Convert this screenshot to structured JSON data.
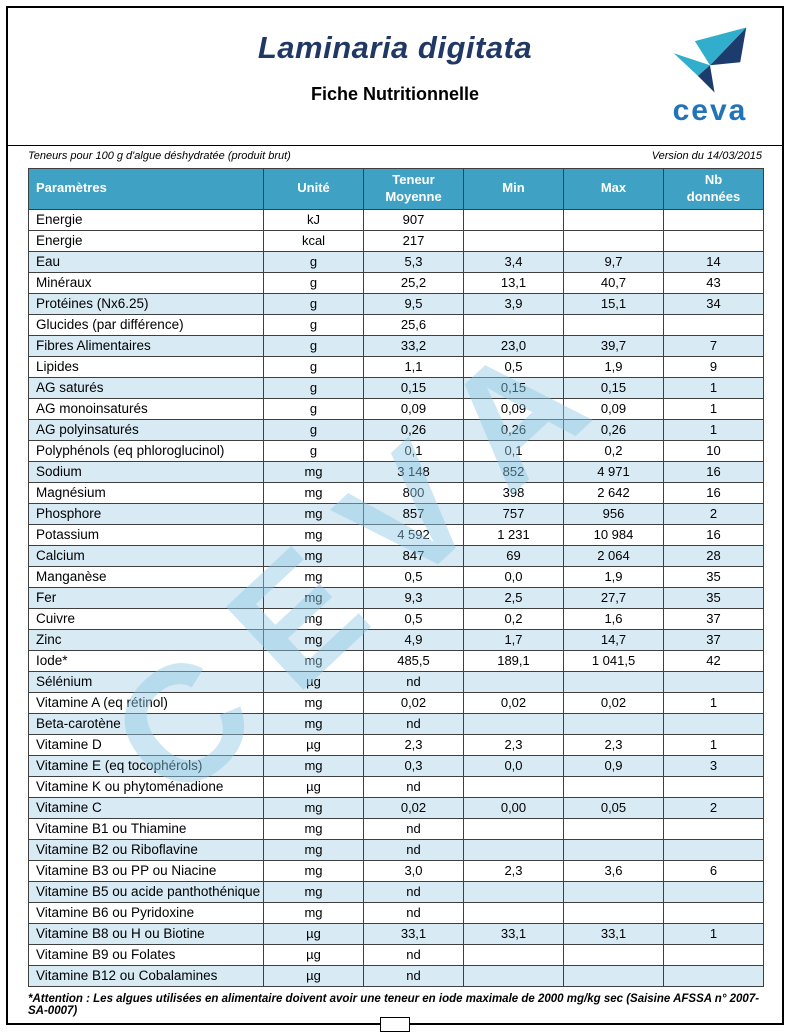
{
  "header": {
    "title": "Laminaria digitata",
    "subtitle": "Fiche Nutritionnelle",
    "logo": {
      "text": "ceva"
    }
  },
  "meta": {
    "sample_note": "Teneurs pour 100 g d'algue déshydratée (produit brut)",
    "version": "Version du 14/03/2015"
  },
  "table": {
    "columns": [
      {
        "label": "Paramètres"
      },
      {
        "label": "Unité"
      },
      {
        "label": "Teneur",
        "label2": "Moyenne"
      },
      {
        "label": "Min"
      },
      {
        "label": "Max"
      },
      {
        "label": "Nb",
        "label2": "données"
      }
    ],
    "rows": [
      [
        "Energie",
        "kJ",
        "907",
        "",
        "",
        ""
      ],
      [
        "Energie",
        "kcal",
        "217",
        "",
        "",
        ""
      ],
      [
        "Eau",
        "g",
        "5,3",
        "3,4",
        "9,7",
        "14"
      ],
      [
        "Minéraux",
        "g",
        "25,2",
        "13,1",
        "40,7",
        "43"
      ],
      [
        "Protéines (Nx6.25)",
        "g",
        "9,5",
        "3,9",
        "15,1",
        "34"
      ],
      [
        "Glucides (par différence)",
        "g",
        "25,6",
        "",
        "",
        ""
      ],
      [
        "Fibres Alimentaires",
        "g",
        "33,2",
        "23,0",
        "39,7",
        "7"
      ],
      [
        "Lipides",
        "g",
        "1,1",
        "0,5",
        "1,9",
        "9"
      ],
      [
        "AG saturés",
        "g",
        "0,15",
        "0,15",
        "0,15",
        "1"
      ],
      [
        "AG monoinsaturés",
        "g",
        "0,09",
        "0,09",
        "0,09",
        "1"
      ],
      [
        "AG polyinsaturés",
        "g",
        "0,26",
        "0,26",
        "0,26",
        "1"
      ],
      [
        "Polyphénols (eq phloroglucinol)",
        "g",
        "0,1",
        "0,1",
        "0,2",
        "10"
      ],
      [
        "Sodium",
        "mg",
        "3 148",
        "852",
        "4 971",
        "16"
      ],
      [
        "Magnésium",
        "mg",
        "800",
        "398",
        "2 642",
        "16"
      ],
      [
        "Phosphore",
        "mg",
        "857",
        "757",
        "956",
        "2"
      ],
      [
        "Potassium",
        "mg",
        "4 592",
        "1 231",
        "10 984",
        "16"
      ],
      [
        "Calcium",
        "mg",
        "847",
        "69",
        "2 064",
        "28"
      ],
      [
        "Manganèse",
        "mg",
        "0,5",
        "0,0",
        "1,9",
        "35"
      ],
      [
        "Fer",
        "mg",
        "9,3",
        "2,5",
        "27,7",
        "35"
      ],
      [
        "Cuivre",
        "mg",
        "0,5",
        "0,2",
        "1,6",
        "37"
      ],
      [
        "Zinc",
        "mg",
        "4,9",
        "1,7",
        "14,7",
        "37"
      ],
      [
        "Iode*",
        "mg",
        "485,5",
        "189,1",
        "1 041,5",
        "42"
      ],
      [
        "Sélénium",
        "µg",
        "nd",
        "",
        "",
        ""
      ],
      [
        "Vitamine A (eq rétinol)",
        "mg",
        "0,02",
        "0,02",
        "0,02",
        "1"
      ],
      [
        "Beta-carotène",
        "mg",
        "nd",
        "",
        "",
        ""
      ],
      [
        "Vitamine D",
        "µg",
        "2,3",
        "2,3",
        "2,3",
        "1"
      ],
      [
        "Vitamine E (eq tocophérols)",
        "mg",
        "0,3",
        "0,0",
        "0,9",
        "3"
      ],
      [
        "Vitamine K ou phytoménadione",
        "µg",
        "nd",
        "",
        "",
        ""
      ],
      [
        "Vitamine C",
        "mg",
        "0,02",
        "0,00",
        "0,05",
        "2"
      ],
      [
        "Vitamine B1 ou Thiamine",
        "mg",
        "nd",
        "",
        "",
        ""
      ],
      [
        "Vitamine B2 ou Riboflavine",
        "mg",
        "nd",
        "",
        "",
        ""
      ],
      [
        "Vitamine B3 ou PP ou Niacine",
        "mg",
        "3,0",
        "2,3",
        "3,6",
        "6"
      ],
      [
        "Vitamine B5 ou acide panthothénique",
        "mg",
        "nd",
        "",
        "",
        ""
      ],
      [
        "Vitamine B6 ou Pyridoxine",
        "mg",
        "nd",
        "",
        "",
        ""
      ],
      [
        "Vitamine B8 ou H ou Biotine",
        "µg",
        "33,1",
        "33,1",
        "33,1",
        "1"
      ],
      [
        "Vitamine B9 ou Folates",
        "µg",
        "nd",
        "",
        "",
        ""
      ],
      [
        "Vitamine B12 ou Cobalamines",
        "µg",
        "nd",
        "",
        "",
        ""
      ]
    ]
  },
  "watermark": "CEVA",
  "footer": {
    "note": "*Attention : Les algues utilisées en alimentaire doivent avoir une teneur en iode maximale de 2000 mg/kg sec (Saisine AFSSA n° 2007-SA-0007)"
  },
  "colors": {
    "header-teal": "#3FA2C4",
    "row-blue": "#D8EAF4",
    "title-navy": "#1F3864",
    "ceva-blue": "#2273B8",
    "watermark-blue": "#8EC9E4",
    "logo-navy": "#1D3C6E",
    "logo-teal": "#31AECB"
  }
}
